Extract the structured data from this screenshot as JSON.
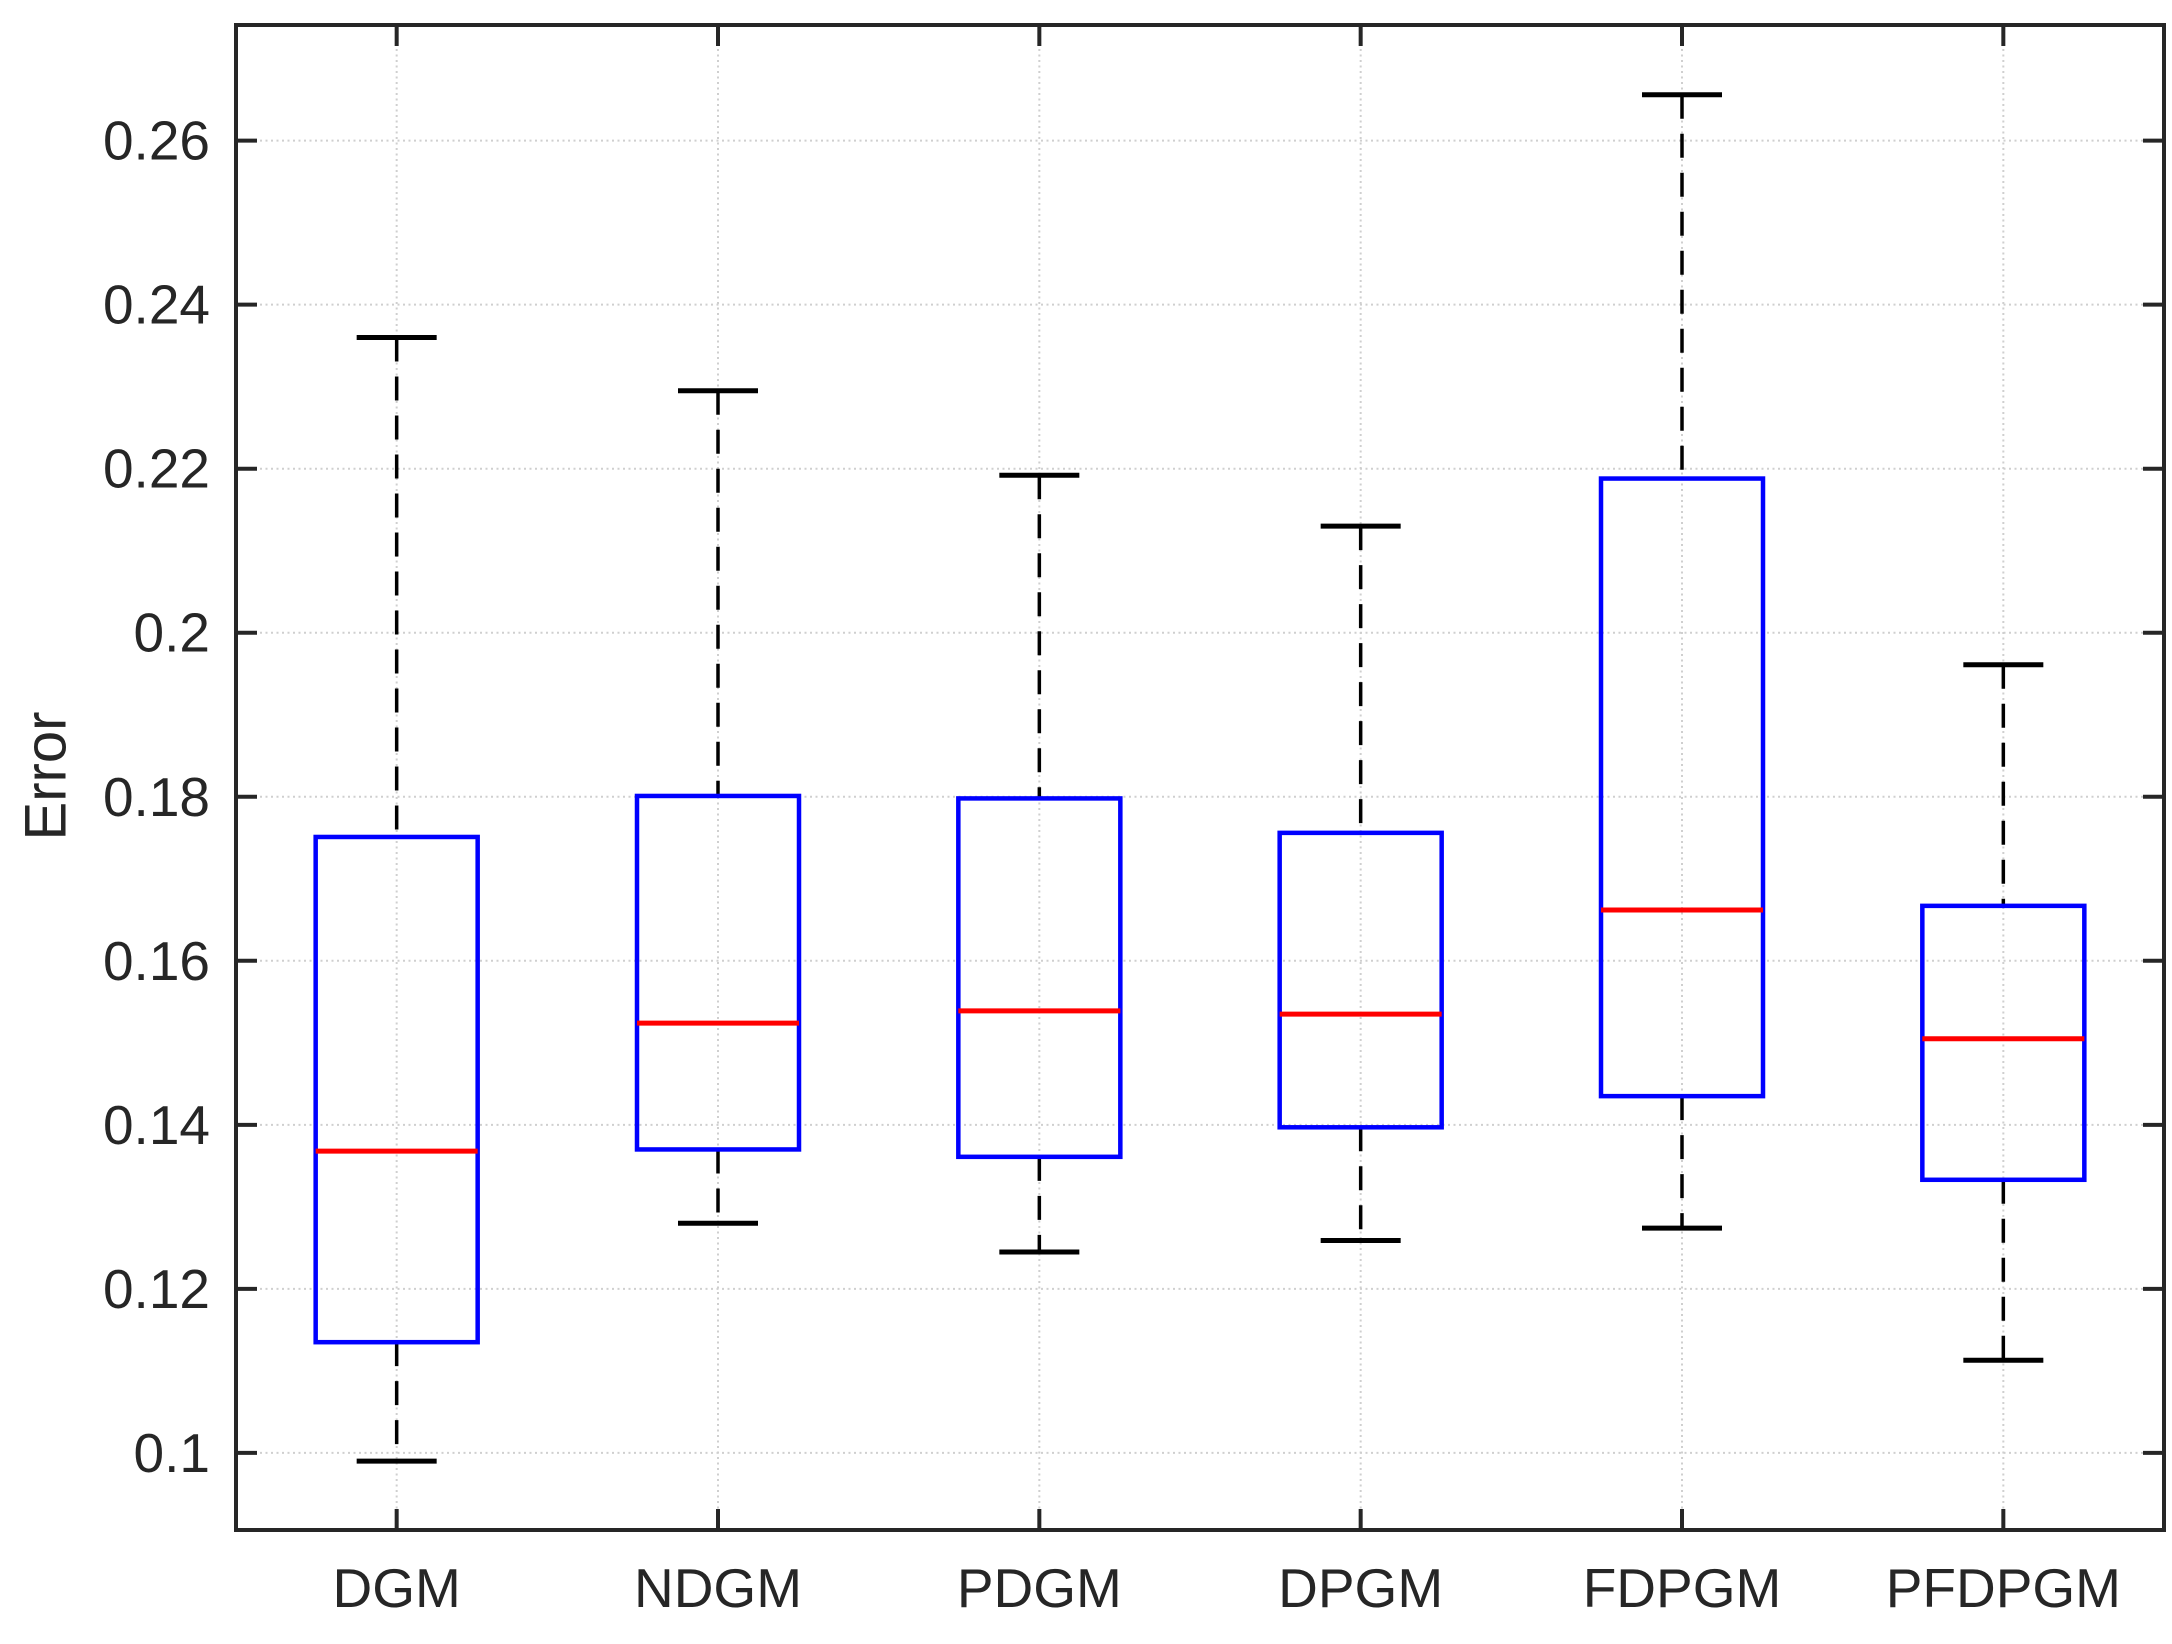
{
  "figure": {
    "background": "#ffffff"
  },
  "chart_data": {
    "type": "boxplot",
    "title": "",
    "xlabel": "",
    "ylabel": "Error",
    "categories": [
      "DGM",
      "NDGM",
      "PDGM",
      "DPGM",
      "FDPGM",
      "PFDPGM"
    ],
    "yticks": [
      0.1,
      0.12,
      0.14,
      0.16,
      0.18,
      0.2,
      0.22,
      0.24,
      0.26
    ],
    "ytick_labels": [
      "0.1",
      "0.12",
      "0.14",
      "0.16",
      "0.18",
      "0.2",
      "0.22",
      "0.24",
      "0.26"
    ],
    "ylim": [
      0.0906,
      0.2741
    ],
    "xlim_units": [
      0.5,
      6.5
    ],
    "grid": "on",
    "legend": "none",
    "boxes": [
      {
        "label": "DGM",
        "whisker_low": 0.099,
        "q1": 0.1135,
        "median": 0.1368,
        "q3": 0.1751,
        "whisker_high": 0.236
      },
      {
        "label": "NDGM",
        "whisker_low": 0.128,
        "q1": 0.137,
        "median": 0.1524,
        "q3": 0.1801,
        "whisker_high": 0.2295
      },
      {
        "label": "PDGM",
        "whisker_low": 0.1245,
        "q1": 0.1361,
        "median": 0.1539,
        "q3": 0.1798,
        "whisker_high": 0.2192
      },
      {
        "label": "DPGM",
        "whisker_low": 0.1259,
        "q1": 0.1397,
        "median": 0.1535,
        "q3": 0.1756,
        "whisker_high": 0.213
      },
      {
        "label": "FDPGM",
        "whisker_low": 0.1274,
        "q1": 0.1435,
        "median": 0.1662,
        "q3": 0.2188,
        "whisker_high": 0.2656
      },
      {
        "label": "PFDPGM",
        "whisker_low": 0.1113,
        "q1": 0.1333,
        "median": 0.1505,
        "q3": 0.1667,
        "whisker_high": 0.1961
      }
    ],
    "colors": {
      "box_edge": "#0000ff",
      "median": "#ff0000",
      "whisker": "#000000",
      "whisker_cap": "#000000",
      "axis": "#262626",
      "grid_line": "#cfcfcf",
      "tick_label": "#262626",
      "background": "#ffffff"
    }
  }
}
